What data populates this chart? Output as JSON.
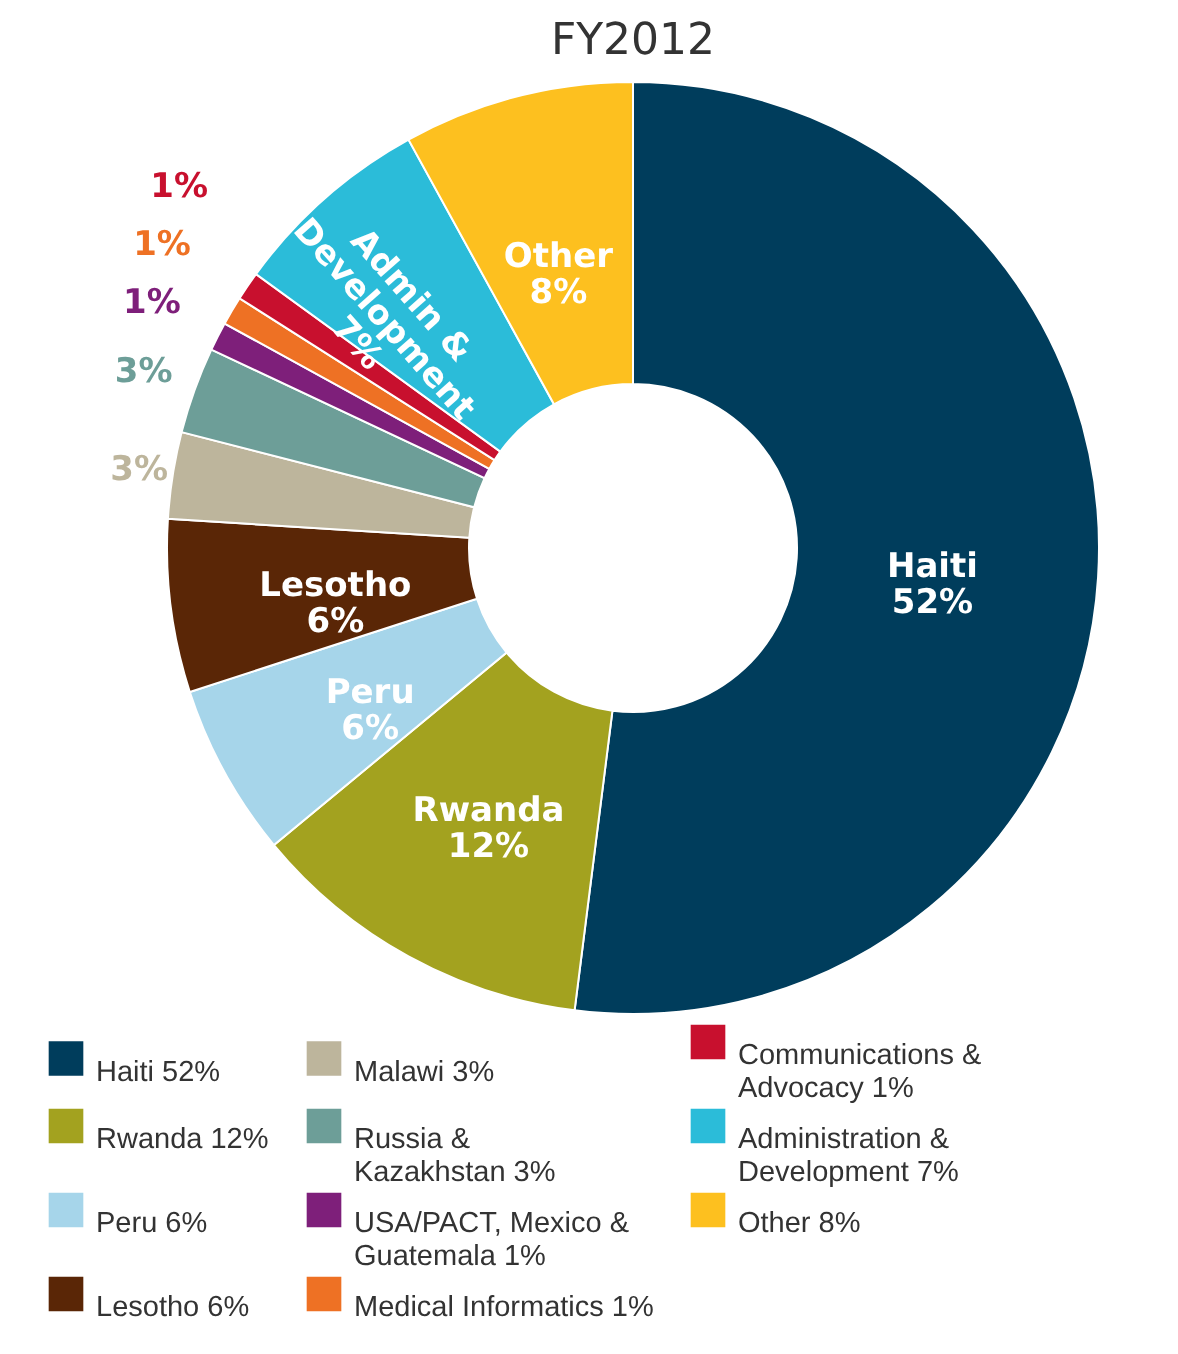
{
  "chart_data": {
    "type": "donut",
    "title": "FY2012",
    "categories": [
      "Haiti 52%",
      "Rwanda 12%",
      "Peru 6%",
      "Lesotho 6%",
      "Malawi 3%",
      "Russia &\nKazakhstan 3%",
      "USA/PACT, Mexico &\nGuatemala 1%",
      "Medical Informatics 1%",
      "Communications &\nAdvocacy 1%",
      "Administration &\nDevelopment 7%",
      "Other 8%"
    ],
    "values": [
      52,
      12,
      6,
      6,
      3,
      3,
      1,
      1,
      1,
      7,
      8
    ],
    "colors": [
      "#003d5c",
      "#a3a21f",
      "#a6d5ea",
      "#5a2606",
      "#bdb59c",
      "#6d9e98",
      "#7e1f7a",
      "#ee7124",
      "#c8102e",
      "#2bbcd9",
      "#fdc01f"
    ],
    "value_labels": [
      "Haiti\n52%",
      "Rwanda\n12%",
      "Peru\n6%",
      "Lesotho\n6%",
      "3%",
      "3%",
      "1%",
      "1%",
      "1%",
      "Admin &\nDevelopment\n7%",
      "Other\n8%"
    ],
    "legend": "bottom"
  }
}
